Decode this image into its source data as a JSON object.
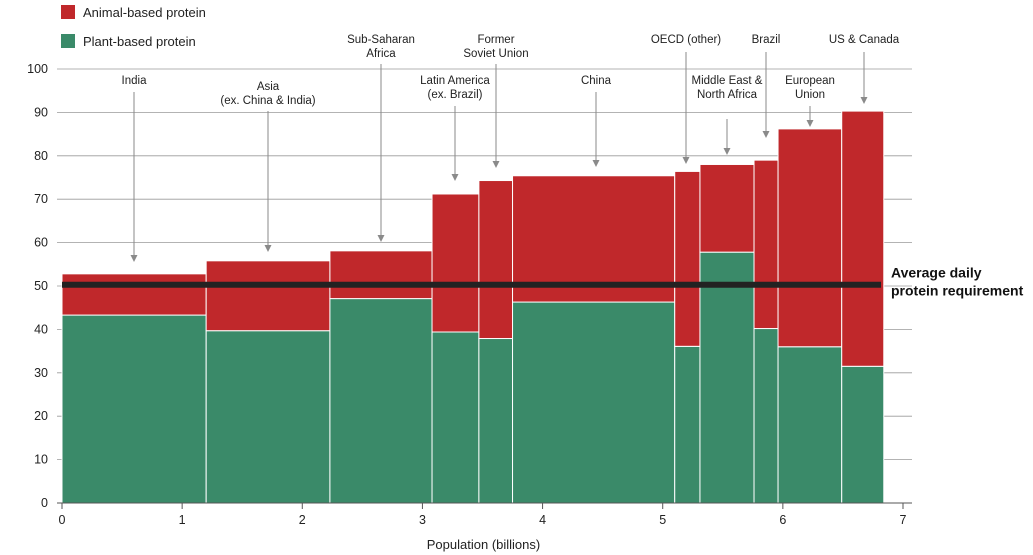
{
  "chart_data": {
    "type": "bar",
    "title": "",
    "xlabel": "Population (billions)",
    "ylabel": "",
    "xlim": [
      0,
      7
    ],
    "ylim": [
      0,
      100
    ],
    "x_ticks": [
      "0",
      "1",
      "2",
      "3",
      "4",
      "5",
      "6",
      "7"
    ],
    "y_ticks": [
      "0",
      "10",
      "20",
      "30",
      "40",
      "50",
      "60",
      "70",
      "80",
      "90",
      "100"
    ],
    "grid": true,
    "legend": {
      "placement": "top-left",
      "entries": [
        {
          "name": "Animal-based protein",
          "color": "#c0282b"
        },
        {
          "name": "Plant-based protein",
          "color": "#3a8a69"
        }
      ]
    },
    "series": [
      {
        "name": "Plant-based protein",
        "color": "#3a8a69"
      },
      {
        "name": "Animal-based protein",
        "color": "#c0282b"
      }
    ],
    "categories": [
      {
        "label": [
          "India"
        ],
        "x_start": 0.0,
        "x_end": 1.2,
        "plant": 43.3,
        "total": 52.8
      },
      {
        "label": [
          "Asia",
          "(ex. China & India)"
        ],
        "x_start": 1.2,
        "x_end": 2.23,
        "plant": 39.7,
        "total": 55.8
      },
      {
        "label": [
          "Sub-Saharan",
          "Africa"
        ],
        "x_start": 2.23,
        "x_end": 3.08,
        "plant": 47.1,
        "total": 58.1
      },
      {
        "label": [
          "Latin America",
          "(ex. Brazil)"
        ],
        "x_start": 3.08,
        "x_end": 3.47,
        "plant": 39.4,
        "total": 71.2
      },
      {
        "label": [
          "Former",
          "Soviet Union"
        ],
        "x_start": 3.47,
        "x_end": 3.75,
        "plant": 37.9,
        "total": 74.3
      },
      {
        "label": [
          "China"
        ],
        "x_start": 3.75,
        "x_end": 5.1,
        "plant": 46.3,
        "total": 75.4
      },
      {
        "label": [
          "OECD (other)"
        ],
        "x_start": 5.1,
        "x_end": 5.31,
        "plant": 36.1,
        "total": 76.4
      },
      {
        "label": [
          "Middle East &",
          "North Africa"
        ],
        "x_start": 5.31,
        "x_end": 5.76,
        "plant": 57.8,
        "total": 78.0
      },
      {
        "label": [
          "Brazil"
        ],
        "x_start": 5.76,
        "x_end": 5.96,
        "plant": 40.2,
        "total": 79.0
      },
      {
        "label": [
          "European",
          "Union"
        ],
        "x_start": 5.96,
        "x_end": 6.49,
        "plant": 36.0,
        "total": 86.2
      },
      {
        "label": [
          "US & Canada"
        ],
        "x_start": 6.49,
        "x_end": 6.84,
        "plant": 31.5,
        "total": 90.3
      }
    ],
    "reference_line": {
      "value": 50.3,
      "label": [
        "Average daily",
        "protein requirement"
      ],
      "color": "#222222"
    }
  }
}
